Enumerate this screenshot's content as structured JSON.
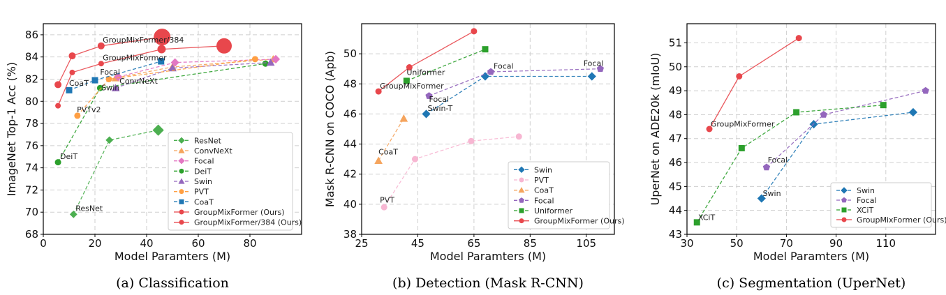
{
  "chart_data": [
    {
      "type": "line",
      "panel": "a",
      "caption": "(a) Classification",
      "xlabel": "Model Paramters (M)",
      "ylabel": "ImageNet Top-1 Acc (%)",
      "xlim": [
        0,
        100
      ],
      "ylim": [
        68,
        87
      ],
      "xticks": [
        "0",
        "20",
        "40",
        "60",
        "80"
      ],
      "xtick_values": [
        0,
        20,
        40,
        60,
        80
      ],
      "yticks": [
        "68",
        "70",
        "72",
        "74",
        "76",
        "78",
        "80",
        "82",
        "84",
        "86"
      ],
      "ytick_values": [
        68,
        70,
        72,
        74,
        76,
        78,
        80,
        82,
        84,
        86
      ],
      "grid": true,
      "legend_position": "lower-right",
      "series": [
        {
          "name": "ResNet",
          "color": "#4caf50",
          "marker": "diamond",
          "dashed": true,
          "x": [
            11.7,
            25.6,
            44.5
          ],
          "y": [
            69.8,
            76.5,
            77.4
          ]
        },
        {
          "name": "ConvNeXt",
          "color": "#f5a45d",
          "marker": "triangle",
          "dashed": true,
          "x": [
            28,
            50,
            89
          ],
          "y": [
            82.1,
            83.1,
            83.8
          ]
        },
        {
          "name": "Focal",
          "color": "#e377c2",
          "marker": "diamond",
          "dashed": true,
          "x": [
            29,
            51,
            90
          ],
          "y": [
            82.2,
            83.5,
            83.8
          ]
        },
        {
          "name": "DeiT",
          "color": "#2ca02c",
          "marker": "circle",
          "dashed": true,
          "x": [
            5.7,
            22,
            86
          ],
          "y": [
            74.5,
            81.2,
            83.4
          ]
        },
        {
          "name": "Swin",
          "color": "#9467bd",
          "marker": "triangle",
          "dashed": true,
          "x": [
            28,
            50,
            88
          ],
          "y": [
            81.2,
            83.0,
            83.5
          ]
        },
        {
          "name": "PVT",
          "color": "#ff9f43",
          "marker": "circle",
          "dashed": true,
          "x": [
            13.2,
            25.4,
            82
          ],
          "y": [
            78.7,
            82.0,
            83.8
          ]
        },
        {
          "name": "CoaT",
          "color": "#1f77b4",
          "marker": "square",
          "dashed": true,
          "x": [
            10,
            20,
            45.6
          ],
          "y": [
            81.0,
            81.9,
            83.6
          ]
        },
        {
          "name": "GroupMixFormer (Ours)",
          "color": "#e8474c",
          "marker": "circle",
          "dashed": false,
          "x": [
            5.7,
            11.2,
            22.4,
            45.8,
            70
          ],
          "y": [
            79.6,
            82.6,
            83.4,
            84.7,
            85.0
          ]
        },
        {
          "name": "GroupMixFormer/384 (Ours)",
          "color": "#e8474c",
          "marker": "circle",
          "dashed": false,
          "x": [
            5.7,
            11.2,
            22.4,
            46
          ],
          "y": [
            81.5,
            84.1,
            85.0,
            85.8
          ]
        }
      ],
      "annotations": [
        {
          "text": "GroupMixFormer/384",
          "x": 23,
          "y": 85.3
        },
        {
          "text": "GroupMixFormer",
          "x": 23,
          "y": 83.7
        },
        {
          "text": "Focal",
          "x": 22,
          "y": 82.4
        },
        {
          "text": "CoaT",
          "x": 10,
          "y": 81.4
        },
        {
          "text": "Swin",
          "x": 22.5,
          "y": 81.0
        },
        {
          "text": "ConvNeXt",
          "x": 29.5,
          "y": 81.6
        },
        {
          "text": "PVTv2",
          "x": 13,
          "y": 79.0
        },
        {
          "text": "DeiT",
          "x": 6.5,
          "y": 74.8
        },
        {
          "text": "ResNet",
          "x": 12.5,
          "y": 70.1
        }
      ]
    },
    {
      "type": "line",
      "panel": "b",
      "caption": "(b) Detection (Mask R-CNN)",
      "xlabel": "Model Paramters (M)",
      "ylabel": "Mask  R-CNN on COCO (Apb)",
      "xlim": [
        25,
        115
      ],
      "ylim": [
        38,
        52
      ],
      "xticks": [
        "25",
        "45",
        "65",
        "85",
        "105"
      ],
      "xtick_values": [
        25,
        45,
        65,
        85,
        105
      ],
      "yticks": [
        "38",
        "40",
        "42",
        "44",
        "46",
        "48",
        "50"
      ],
      "ytick_values": [
        38,
        40,
        42,
        44,
        46,
        48,
        50
      ],
      "grid": true,
      "legend_position": "lower-right",
      "series": [
        {
          "name": "Swin",
          "color": "#1f77b4",
          "marker": "diamond",
          "dashed": true,
          "x": [
            48,
            69,
            107
          ],
          "y": [
            46.0,
            48.5,
            48.5
          ]
        },
        {
          "name": "PVT",
          "color": "#f7b6d2",
          "marker": "circle",
          "dashed": true,
          "x": [
            33,
            44,
            64,
            81
          ],
          "y": [
            39.8,
            43.0,
            44.2,
            44.5
          ]
        },
        {
          "name": "CoaT",
          "color": "#f5a45d",
          "marker": "triangle",
          "dashed": true,
          "x": [
            31,
            40
          ],
          "y": [
            42.9,
            45.7
          ]
        },
        {
          "name": "Focal",
          "color": "#9467bd",
          "marker": "pentagon",
          "dashed": true,
          "x": [
            49,
            71,
            110
          ],
          "y": [
            47.2,
            48.8,
            49.0
          ]
        },
        {
          "name": "Uniformer",
          "color": "#2ca02c",
          "marker": "square",
          "dashed": true,
          "x": [
            41,
            69
          ],
          "y": [
            48.2,
            50.3
          ]
        },
        {
          "name": "GroupMixFormer (Ours)",
          "color": "#e8474c",
          "marker": "circle",
          "dashed": false,
          "x": [
            31,
            42,
            65
          ],
          "y": [
            47.5,
            49.1,
            51.5
          ]
        }
      ],
      "annotations": [
        {
          "text": "Uniformer",
          "x": 41,
          "y": 48.6
        },
        {
          "text": "GroupMixFormer",
          "x": 31.5,
          "y": 47.7
        },
        {
          "text": "Focal",
          "x": 72,
          "y": 49.0
        },
        {
          "text": "Focal",
          "x": 104,
          "y": 49.2
        },
        {
          "text": "Focal",
          "x": 49,
          "y": 46.8
        },
        {
          "text": "Swin-T",
          "x": 48.5,
          "y": 46.2
        },
        {
          "text": "CoaT",
          "x": 31,
          "y": 43.3
        },
        {
          "text": "PVT",
          "x": 31.5,
          "y": 40.1
        }
      ]
    },
    {
      "type": "line",
      "panel": "c",
      "caption": "(c) Segmentation (UperNet)",
      "xlabel": "Model Paramters (M)",
      "ylabel": "UperNet on ADE20k (mIoU)",
      "xlim": [
        30,
        130
      ],
      "ylim": [
        43,
        51.8
      ],
      "xticks": [
        "30",
        "50",
        "70",
        "90",
        "110"
      ],
      "xtick_values": [
        30,
        50,
        70,
        90,
        110
      ],
      "yticks": [
        "43",
        "44",
        "45",
        "46",
        "47",
        "48",
        "49",
        "50",
        "51"
      ],
      "ytick_values": [
        43,
        44,
        45,
        46,
        47,
        48,
        49,
        50,
        51
      ],
      "grid": true,
      "legend_position": "lower-right",
      "series": [
        {
          "name": "Swin",
          "color": "#1f77b4",
          "marker": "diamond",
          "dashed": true,
          "x": [
            60,
            81,
            121
          ],
          "y": [
            44.5,
            47.6,
            48.1
          ]
        },
        {
          "name": "Focal",
          "color": "#9467bd",
          "marker": "pentagon",
          "dashed": true,
          "x": [
            62,
            85,
            126
          ],
          "y": [
            45.8,
            48.0,
            49.0
          ]
        },
        {
          "name": "XCiT",
          "color": "#2ca02c",
          "marker": "square",
          "dashed": true,
          "x": [
            34,
            52,
            74,
            109
          ],
          "y": [
            43.5,
            46.6,
            48.1,
            48.4
          ]
        },
        {
          "name": "GroupMixFormer (Ours)",
          "color": "#e8474c",
          "marker": "circle",
          "dashed": false,
          "x": [
            39,
            51,
            75
          ],
          "y": [
            47.4,
            49.6,
            51.2
          ]
        }
      ],
      "annotations": [
        {
          "text": "GroupMixFormer",
          "x": 39.5,
          "y": 47.5
        },
        {
          "text": "Focal",
          "x": 62.5,
          "y": 46.0
        },
        {
          "text": "Swin",
          "x": 60.5,
          "y": 44.6
        },
        {
          "text": "XCiT",
          "x": 34.5,
          "y": 43.6
        }
      ]
    }
  ]
}
